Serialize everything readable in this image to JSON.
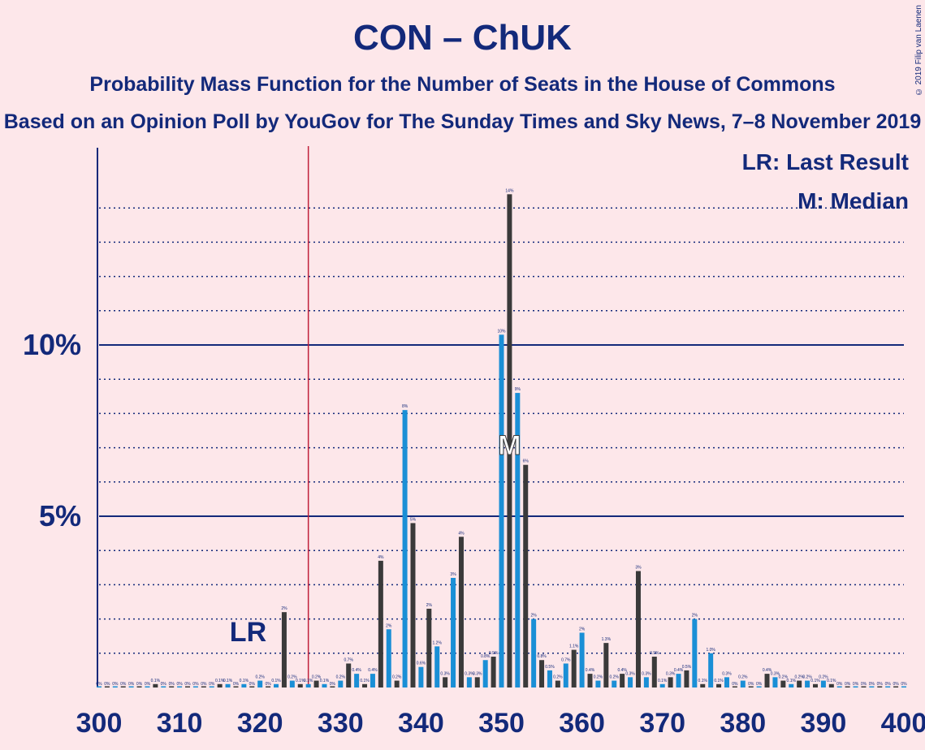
{
  "chart_data": {
    "type": "bar",
    "title": "CON – ChUK",
    "subtitle": "Probability Mass Function for the Number of Seats in the House of Commons",
    "subtitle2": "Based on an Opinion Poll by YouGov for The Sunday Times and Sky News, 7–8 November 2019",
    "copyright": "© 2019 Filip van Laenen",
    "xlim": [
      300,
      400
    ],
    "ylim": [
      0,
      14.5
    ],
    "x_ticks": [
      "300",
      "310",
      "320",
      "330",
      "340",
      "350",
      "360",
      "370",
      "380",
      "390",
      "400"
    ],
    "y_ticks": [
      {
        "value": 5,
        "label": "5%"
      },
      {
        "value": 10,
        "label": "10%"
      }
    ],
    "last_result": {
      "seat": 326,
      "label": "LR"
    },
    "median": {
      "seat": 351,
      "label": "M"
    },
    "legend": {
      "lr": "LR: Last Result",
      "m": "M: Median"
    },
    "colors": {
      "blue": "#1a8fd6",
      "dark": "#3a3a3a",
      "axis": "#13297a",
      "lr_line": "#c0203a",
      "background": "#fde7ea"
    },
    "bars": [
      {
        "x": 300,
        "v": 0.0,
        "label": "0%"
      },
      {
        "x": 301,
        "v": 0.0,
        "label": "0%"
      },
      {
        "x": 302,
        "v": 0.0,
        "label": "0%"
      },
      {
        "x": 303,
        "v": 0.0,
        "label": "0%"
      },
      {
        "x": 304,
        "v": 0.0,
        "label": "0%"
      },
      {
        "x": 305,
        "v": 0.0,
        "label": "0%"
      },
      {
        "x": 306,
        "v": 0.0,
        "label": "0%"
      },
      {
        "x": 307,
        "v": 0.1,
        "label": "0.1%"
      },
      {
        "x": 308,
        "v": 0.0,
        "label": "0%"
      },
      {
        "x": 309,
        "v": 0.0,
        "label": "0%"
      },
      {
        "x": 310,
        "v": 0.0,
        "label": "0%"
      },
      {
        "x": 311,
        "v": 0.0,
        "label": "0%"
      },
      {
        "x": 312,
        "v": 0.0,
        "label": "0%"
      },
      {
        "x": 313,
        "v": 0.0,
        "label": "0%"
      },
      {
        "x": 314,
        "v": 0.0,
        "label": "0%"
      },
      {
        "x": 315,
        "v": 0.1,
        "label": "0.1%"
      },
      {
        "x": 316,
        "v": 0.1,
        "label": "0.1%"
      },
      {
        "x": 317,
        "v": 0.0,
        "label": "0%"
      },
      {
        "x": 318,
        "v": 0.1,
        "label": "0.1%"
      },
      {
        "x": 319,
        "v": 0.0,
        "label": "0%"
      },
      {
        "x": 320,
        "v": 0.2,
        "label": "0.2%"
      },
      {
        "x": 321,
        "v": 0.0,
        "label": "0%"
      },
      {
        "x": 322,
        "v": 0.1,
        "label": "0.1%"
      },
      {
        "x": 323,
        "v": 2.2,
        "label": "2%"
      },
      {
        "x": 324,
        "v": 0.2,
        "label": "0.2%"
      },
      {
        "x": 325,
        "v": 0.1,
        "label": "0.1%"
      },
      {
        "x": 326,
        "v": 0.1,
        "label": "0.1%"
      },
      {
        "x": 327,
        "v": 0.2,
        "label": "0.2%"
      },
      {
        "x": 328,
        "v": 0.1,
        "label": "0.1%"
      },
      {
        "x": 329,
        "v": 0.0,
        "label": "0%"
      },
      {
        "x": 330,
        "v": 0.2,
        "label": "0.2%"
      },
      {
        "x": 331,
        "v": 0.7,
        "label": "0.7%"
      },
      {
        "x": 332,
        "v": 0.4,
        "label": "0.4%"
      },
      {
        "x": 333,
        "v": 0.1,
        "label": "0.1%"
      },
      {
        "x": 334,
        "v": 0.4,
        "label": "0.4%"
      },
      {
        "x": 335,
        "v": 3.7,
        "label": "4%"
      },
      {
        "x": 336,
        "v": 1.7,
        "label": "2%"
      },
      {
        "x": 337,
        "v": 0.2,
        "label": "0.2%"
      },
      {
        "x": 338,
        "v": 8.1,
        "label": "8%"
      },
      {
        "x": 339,
        "v": 4.8,
        "label": "5%"
      },
      {
        "x": 340,
        "v": 0.6,
        "label": "0.6%"
      },
      {
        "x": 341,
        "v": 2.3,
        "label": "2%"
      },
      {
        "x": 342,
        "v": 1.2,
        "label": "1.2%"
      },
      {
        "x": 343,
        "v": 0.3,
        "label": "0.3%"
      },
      {
        "x": 344,
        "v": 3.2,
        "label": "3%"
      },
      {
        "x": 345,
        "v": 4.4,
        "label": "4%"
      },
      {
        "x": 346,
        "v": 0.3,
        "label": "0.3%"
      },
      {
        "x": 347,
        "v": 0.3,
        "label": "0.3%"
      },
      {
        "x": 348,
        "v": 0.8,
        "label": "0.8%"
      },
      {
        "x": 349,
        "v": 0.9,
        "label": "0.9%"
      },
      {
        "x": 350,
        "v": 10.3,
        "label": "10%"
      },
      {
        "x": 351,
        "v": 14.4,
        "label": "14%"
      },
      {
        "x": 352,
        "v": 8.6,
        "label": "9%"
      },
      {
        "x": 353,
        "v": 6.5,
        "label": "6%"
      },
      {
        "x": 354,
        "v": 2.0,
        "label": "2%"
      },
      {
        "x": 355,
        "v": 0.8,
        "label": "0.8%"
      },
      {
        "x": 356,
        "v": 0.5,
        "label": "0.5%"
      },
      {
        "x": 357,
        "v": 0.2,
        "label": "0.2%"
      },
      {
        "x": 358,
        "v": 0.7,
        "label": "0.7%"
      },
      {
        "x": 359,
        "v": 1.1,
        "label": "1.1%"
      },
      {
        "x": 360,
        "v": 1.6,
        "label": "2%"
      },
      {
        "x": 361,
        "v": 0.4,
        "label": "0.4%"
      },
      {
        "x": 362,
        "v": 0.2,
        "label": "0.2%"
      },
      {
        "x": 363,
        "v": 1.3,
        "label": "1.3%"
      },
      {
        "x": 364,
        "v": 0.2,
        "label": "0.2%"
      },
      {
        "x": 365,
        "v": 0.4,
        "label": "0.4%"
      },
      {
        "x": 366,
        "v": 0.3,
        "label": "0.3%"
      },
      {
        "x": 367,
        "v": 3.4,
        "label": "3%"
      },
      {
        "x": 368,
        "v": 0.3,
        "label": "0.3%"
      },
      {
        "x": 369,
        "v": 0.9,
        "label": "0.9%"
      },
      {
        "x": 370,
        "v": 0.1,
        "label": "0.1%"
      },
      {
        "x": 371,
        "v": 0.3,
        "label": "0.3%"
      },
      {
        "x": 372,
        "v": 0.4,
        "label": "0.4%"
      },
      {
        "x": 373,
        "v": 0.5,
        "label": "0.5%"
      },
      {
        "x": 374,
        "v": 2.0,
        "label": "2%"
      },
      {
        "x": 375,
        "v": 0.1,
        "label": "0.1%"
      },
      {
        "x": 376,
        "v": 1.0,
        "label": "1.0%"
      },
      {
        "x": 377,
        "v": 0.1,
        "label": "0.1%"
      },
      {
        "x": 378,
        "v": 0.3,
        "label": "0.3%"
      },
      {
        "x": 379,
        "v": 0.0,
        "label": "0%"
      },
      {
        "x": 380,
        "v": 0.2,
        "label": "0.2%"
      },
      {
        "x": 381,
        "v": 0.0,
        "label": "0%"
      },
      {
        "x": 382,
        "v": 0.0,
        "label": "0%"
      },
      {
        "x": 383,
        "v": 0.4,
        "label": "0.4%"
      },
      {
        "x": 384,
        "v": 0.3,
        "label": "0.3%"
      },
      {
        "x": 385,
        "v": 0.2,
        "label": "0.2%"
      },
      {
        "x": 386,
        "v": 0.1,
        "label": "0.1%"
      },
      {
        "x": 387,
        "v": 0.2,
        "label": "0.2%"
      },
      {
        "x": 388,
        "v": 0.2,
        "label": "0.2%"
      },
      {
        "x": 389,
        "v": 0.1,
        "label": "0.1%"
      },
      {
        "x": 390,
        "v": 0.2,
        "label": "0.2%"
      },
      {
        "x": 391,
        "v": 0.1,
        "label": "0.1%"
      },
      {
        "x": 392,
        "v": 0.0,
        "label": "0%"
      },
      {
        "x": 393,
        "v": 0.0,
        "label": "0%"
      },
      {
        "x": 394,
        "v": 0.0,
        "label": "0%"
      },
      {
        "x": 395,
        "v": 0.0,
        "label": "0%"
      },
      {
        "x": 396,
        "v": 0.0,
        "label": "0%"
      },
      {
        "x": 397,
        "v": 0.0,
        "label": "0%"
      },
      {
        "x": 398,
        "v": 0.0,
        "label": "0%"
      },
      {
        "x": 399,
        "v": 0.0,
        "label": "0%"
      },
      {
        "x": 400,
        "v": 0.0,
        "label": "0%"
      }
    ]
  }
}
